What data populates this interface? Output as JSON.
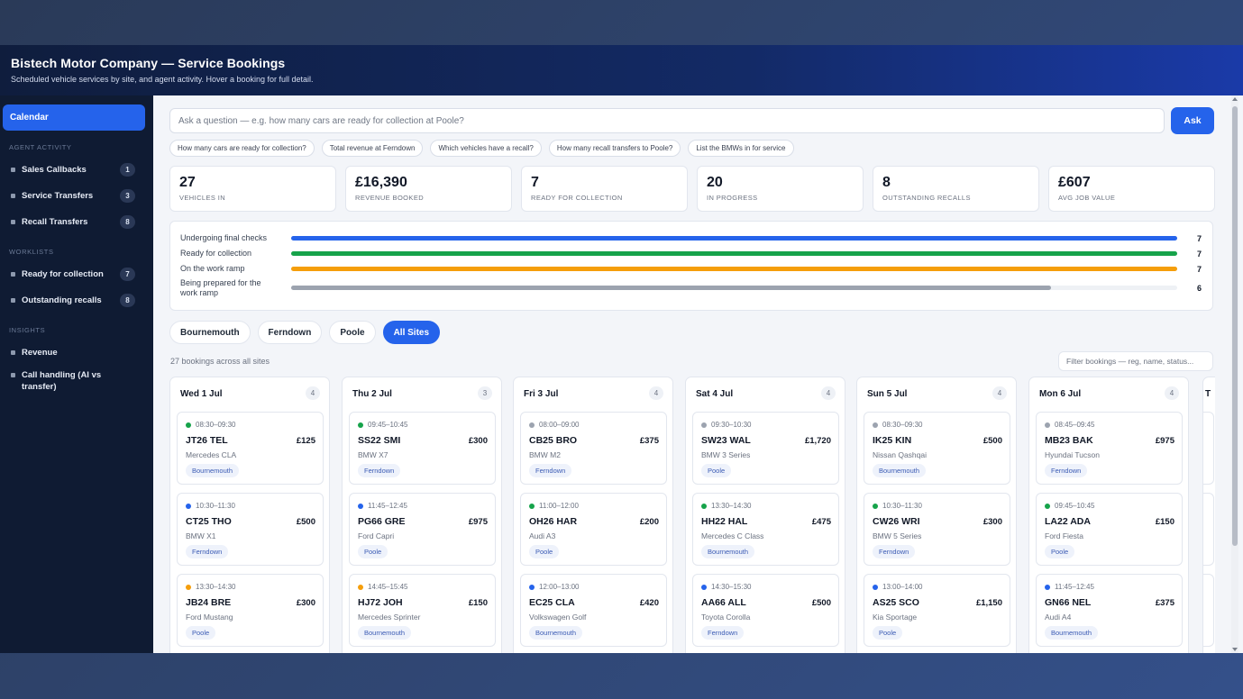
{
  "header": {
    "title": "Bistech Motor Company — Service Bookings",
    "subtitle": "Scheduled vehicle services by site, and agent activity. Hover a booking for full detail."
  },
  "sidebar": {
    "active_item": "Calendar",
    "sections": [
      {
        "label": "AGENT ACTIVITY",
        "items": [
          {
            "label": "Sales Callbacks",
            "count": "1"
          },
          {
            "label": "Service Transfers",
            "count": "3"
          },
          {
            "label": "Recall Transfers",
            "count": "8"
          }
        ]
      },
      {
        "label": "WORKLISTS",
        "items": [
          {
            "label": "Ready for collection",
            "count": "7"
          },
          {
            "label": "Outstanding recalls",
            "count": "8"
          }
        ]
      },
      {
        "label": "INSIGHTS",
        "items": [
          {
            "label": "Revenue"
          },
          {
            "label": "Call handling (AI vs transfer)"
          }
        ]
      }
    ]
  },
  "ask": {
    "placeholder": "Ask a question — e.g. how many cars are ready for collection at Poole?",
    "button": "Ask",
    "suggestions": [
      "How many cars are ready for collection?",
      "Total revenue at Ferndown",
      "Which vehicles have a recall?",
      "How many recall transfers to Poole?",
      "List the BMWs in for service"
    ]
  },
  "kpis": [
    {
      "value": "27",
      "label": "VEHICLES IN"
    },
    {
      "value": "£16,390",
      "label": "REVENUE BOOKED"
    },
    {
      "value": "7",
      "label": "READY FOR COLLECTION"
    },
    {
      "value": "20",
      "label": "IN PROGRESS"
    },
    {
      "value": "8",
      "label": "OUTSTANDING RECALLS"
    },
    {
      "value": "£607",
      "label": "AVG JOB VALUE"
    }
  ],
  "progress": [
    {
      "label": "Undergoing final checks",
      "count": 7,
      "max": 7,
      "color": "#2563eb"
    },
    {
      "label": "Ready for collection",
      "count": 7,
      "max": 7,
      "color": "#16a34a"
    },
    {
      "label": "On the work ramp",
      "count": 7,
      "max": 7,
      "color": "#f59e0b"
    },
    {
      "label": "Being prepared for the work ramp",
      "count": 6,
      "max": 7,
      "color": "#9ca3af"
    }
  ],
  "site_tabs": [
    "Bournemouth",
    "Ferndown",
    "Poole",
    "All Sites"
  ],
  "active_tab": "All Sites",
  "bookings_count_text": "27 bookings across all sites",
  "filter_placeholder": "Filter bookings — reg, name, status...",
  "status_colors": {
    "green": "#16a34a",
    "blue": "#2563eb",
    "orange": "#f59e0b",
    "grey": "#9ca3af"
  },
  "days": [
    {
      "label": "Wed 1 Jul",
      "count": "4",
      "bookings": [
        {
          "time": "08:30–09:30",
          "status": "green",
          "reg": "JT26 TEL",
          "price": "£125",
          "model": "Mercedes CLA",
          "site": "Bournemouth"
        },
        {
          "time": "10:30–11:30",
          "status": "blue",
          "reg": "CT25 THO",
          "price": "£500",
          "model": "BMW X1",
          "site": "Ferndown"
        },
        {
          "time": "13:30–14:30",
          "status": "orange",
          "reg": "JB24 BRE",
          "price": "£300",
          "model": "Ford Mustang",
          "site": "Poole"
        }
      ]
    },
    {
      "label": "Thu 2 Jul",
      "count": "3",
      "bookings": [
        {
          "time": "09:45–10:45",
          "status": "green",
          "reg": "SS22 SMI",
          "price": "£300",
          "model": "BMW X7",
          "site": "Ferndown"
        },
        {
          "time": "11:45–12:45",
          "status": "blue",
          "reg": "PG66 GRE",
          "price": "£975",
          "model": "Ford Capri",
          "site": "Poole"
        },
        {
          "time": "14:45–15:45",
          "status": "orange",
          "reg": "HJ72 JOH",
          "price": "£150",
          "model": "Mercedes Sprinter",
          "site": "Bournemouth"
        }
      ]
    },
    {
      "label": "Fri 3 Jul",
      "count": "4",
      "bookings": [
        {
          "time": "08:00–09:00",
          "status": "grey",
          "reg": "CB25 BRO",
          "price": "£375",
          "model": "BMW M2",
          "site": "Ferndown"
        },
        {
          "time": "11:00–12:00",
          "status": "green",
          "reg": "OH26 HAR",
          "price": "£200",
          "model": "Audi A3",
          "site": "Poole"
        },
        {
          "time": "12:00–13:00",
          "status": "blue",
          "reg": "EC25 CLA",
          "price": "£420",
          "model": "Volkswagen Golf",
          "site": "Bournemouth"
        }
      ]
    },
    {
      "label": "Sat 4 Jul",
      "count": "4",
      "bookings": [
        {
          "time": "09:30–10:30",
          "status": "grey",
          "reg": "SW23 WAL",
          "price": "£1,720",
          "model": "BMW 3 Series",
          "site": "Poole"
        },
        {
          "time": "13:30–14:30",
          "status": "green",
          "reg": "HH22 HAL",
          "price": "£475",
          "model": "Mercedes C Class",
          "site": "Bournemouth"
        },
        {
          "time": "14:30–15:30",
          "status": "blue",
          "reg": "AA66 ALL",
          "price": "£500",
          "model": "Toyota Corolla",
          "site": "Ferndown"
        }
      ]
    },
    {
      "label": "Sun 5 Jul",
      "count": "4",
      "bookings": [
        {
          "time": "08:30–09:30",
          "status": "grey",
          "reg": "IK25 KIN",
          "price": "£500",
          "model": "Nissan Qashqai",
          "site": "Bournemouth"
        },
        {
          "time": "10:30–11:30",
          "status": "green",
          "reg": "CW26 WRI",
          "price": "£300",
          "model": "BMW 5 Series",
          "site": "Ferndown"
        },
        {
          "time": "13:00–14:00",
          "status": "blue",
          "reg": "AS25 SCO",
          "price": "£1,150",
          "model": "Kia Sportage",
          "site": "Poole"
        }
      ]
    },
    {
      "label": "Mon 6 Jul",
      "count": "4",
      "bookings": [
        {
          "time": "08:45–09:45",
          "status": "grey",
          "reg": "MB23 BAK",
          "price": "£975",
          "model": "Hyundai Tucson",
          "site": "Ferndown"
        },
        {
          "time": "09:45–10:45",
          "status": "green",
          "reg": "LA22 ADA",
          "price": "£150",
          "model": "Ford Fiesta",
          "site": "Poole"
        },
        {
          "time": "11:45–12:45",
          "status": "blue",
          "reg": "GN66 NEL",
          "price": "£375",
          "model": "Audi A4",
          "site": "Bournemouth"
        }
      ]
    }
  ],
  "next_day_peek": "T"
}
